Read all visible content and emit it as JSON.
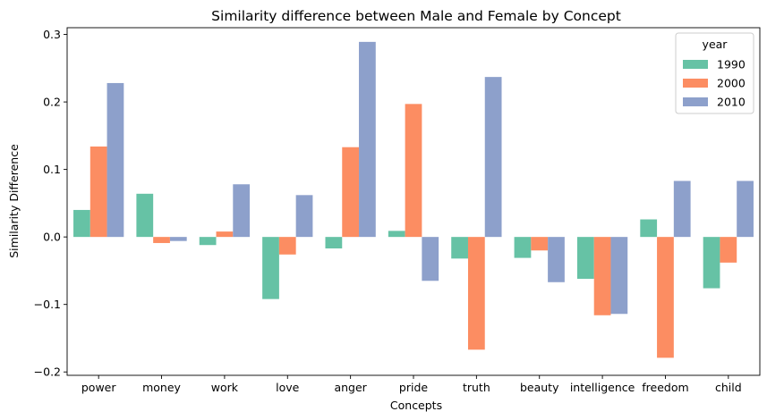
{
  "chart_data": {
    "type": "bar",
    "title": "Similarity difference between Male and Female by Concept",
    "xlabel": "Concepts",
    "ylabel": "Similarity Difference",
    "ylim": [
      -0.205,
      0.31
    ],
    "yticks": [
      -0.2,
      -0.1,
      0.0,
      0.1,
      0.2,
      0.3
    ],
    "ytick_labels": [
      "−0.2",
      "−0.1",
      "0.0",
      "0.1",
      "0.2",
      "0.3"
    ],
    "categories": [
      "power",
      "money",
      "work",
      "love",
      "anger",
      "pride",
      "truth",
      "beauty",
      "intelligence",
      "freedom",
      "child"
    ],
    "legend": {
      "title": "year",
      "placement": "top-right"
    },
    "grid": false,
    "series": [
      {
        "name": "1990",
        "color": "#66c2a5",
        "values": [
          0.04,
          0.064,
          -0.012,
          -0.092,
          -0.017,
          0.009,
          -0.032,
          -0.031,
          -0.062,
          0.026,
          -0.076
        ]
      },
      {
        "name": "2000",
        "color": "#fc8d62",
        "values": [
          0.134,
          -0.009,
          0.008,
          -0.026,
          0.133,
          0.197,
          -0.167,
          -0.02,
          -0.116,
          -0.179,
          -0.038
        ]
      },
      {
        "name": "2010",
        "color": "#8da0cb",
        "values": [
          0.228,
          -0.006,
          0.078,
          0.062,
          0.289,
          -0.065,
          0.237,
          -0.067,
          -0.114,
          0.083,
          0.083
        ]
      }
    ]
  }
}
